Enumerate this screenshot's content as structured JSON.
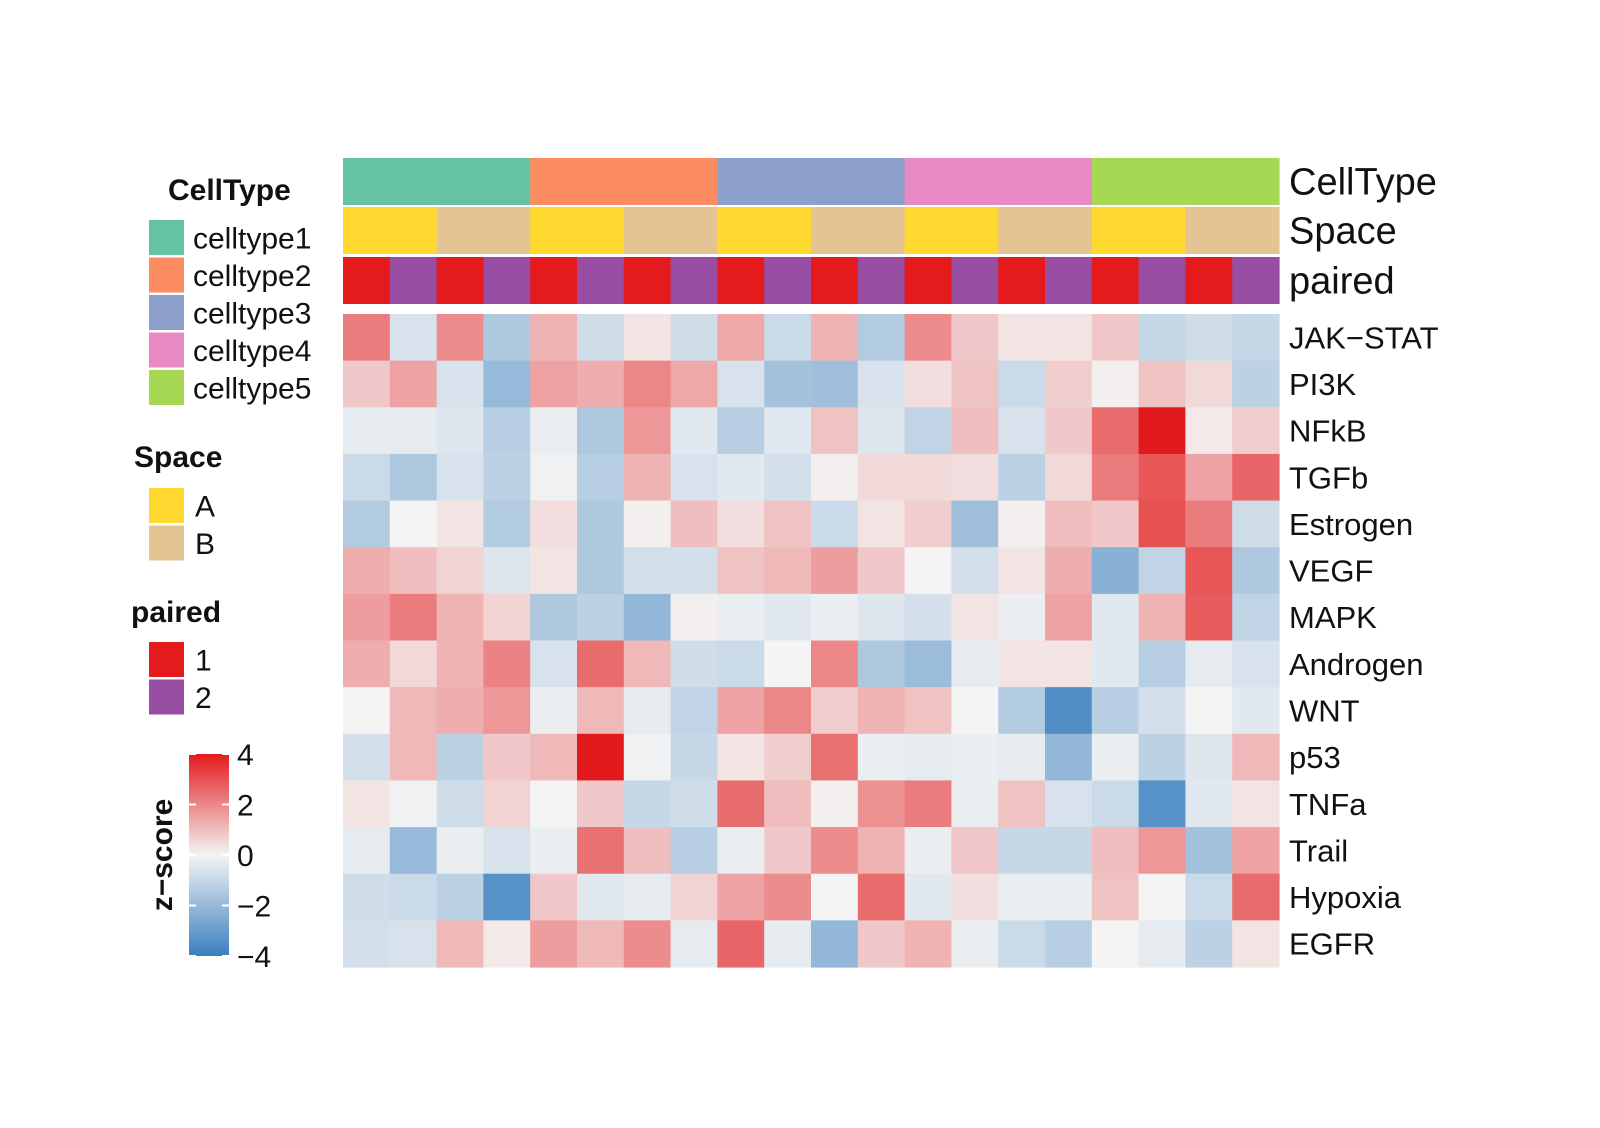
{
  "chart_data": {
    "type": "heatmap",
    "title": "",
    "xlabel": "",
    "ylabel": "",
    "rows": [
      "JAK−STAT",
      "PI3K",
      "NFkB",
      "TGFb",
      "Estrogen",
      "VEGF",
      "MAPK",
      "Androgen",
      "WNT",
      "p53",
      "TNFa",
      "Trail",
      "Hypoxia",
      "EGFR"
    ],
    "values": [
      [
        2.2,
        -0.6,
        1.9,
        -1.5,
        1.2,
        -0.8,
        0.3,
        -0.8,
        1.4,
        -0.9,
        1.2,
        -1.4,
        1.9,
        0.8,
        0.3,
        0.3,
        0.8,
        -1.0,
        -0.8,
        -1.0
      ],
      [
        0.8,
        1.5,
        -0.6,
        -2.0,
        1.5,
        1.3,
        2.0,
        1.4,
        -0.6,
        -1.7,
        -1.8,
        -0.6,
        0.4,
        0.9,
        -0.9,
        0.7,
        0.1,
        0.9,
        0.5,
        -1.2
      ],
      [
        -0.3,
        -0.3,
        -0.5,
        -1.3,
        -0.2,
        -1.5,
        1.7,
        -0.4,
        -1.3,
        -0.4,
        0.9,
        -0.5,
        -1.1,
        1.0,
        -0.6,
        0.8,
        2.5,
        4.0,
        0.2,
        0.7
      ],
      [
        -0.9,
        -1.5,
        -0.6,
        -1.2,
        -0.1,
        -1.3,
        1.2,
        -0.6,
        -0.4,
        -0.7,
        0.1,
        0.5,
        0.5,
        0.4,
        -1.2,
        0.5,
        2.2,
        2.9,
        1.5,
        2.6
      ],
      [
        -1.4,
        0.0,
        0.3,
        -1.4,
        0.4,
        -1.5,
        0.1,
        1.0,
        0.4,
        0.9,
        -0.9,
        0.3,
        0.7,
        -1.8,
        0.1,
        1.0,
        0.8,
        3.0,
        2.2,
        -0.8
      ],
      [
        1.3,
        1.0,
        0.6,
        -0.5,
        0.3,
        -1.5,
        -0.7,
        -0.7,
        0.9,
        1.1,
        1.6,
        0.8,
        0.0,
        -0.7,
        0.3,
        1.3,
        -2.3,
        -1.1,
        2.9,
        -1.5
      ],
      [
        1.6,
        2.2,
        1.2,
        0.6,
        -1.5,
        -1.2,
        -2.1,
        0.1,
        -0.2,
        -0.4,
        -0.2,
        -0.5,
        -0.7,
        0.3,
        -0.2,
        1.5,
        -0.4,
        1.2,
        2.8,
        -1.1
      ],
      [
        1.3,
        0.5,
        1.2,
        2.1,
        -0.6,
        2.5,
        1.1,
        -0.8,
        -0.9,
        0.0,
        2.0,
        -1.5,
        -1.9,
        -0.3,
        0.3,
        0.3,
        -0.4,
        -1.3,
        -0.3,
        -0.6
      ],
      [
        0.0,
        1.1,
        1.3,
        1.7,
        -0.2,
        1.1,
        -0.3,
        -1.1,
        1.5,
        2.0,
        0.7,
        1.2,
        0.9,
        0.0,
        -1.4,
        -3.5,
        -1.3,
        -0.7,
        0.0,
        -0.4
      ],
      [
        -0.7,
        1.1,
        -1.2,
        0.8,
        1.1,
        4.0,
        -0.1,
        -1.0,
        0.3,
        0.7,
        2.4,
        -0.2,
        -0.3,
        -0.2,
        -0.3,
        -2.1,
        -0.2,
        -1.2,
        -0.5,
        1.1
      ],
      [
        0.3,
        -0.1,
        -0.8,
        0.6,
        0.0,
        0.8,
        -1.0,
        -0.8,
        2.5,
        1.0,
        0.1,
        1.8,
        2.2,
        -0.2,
        0.9,
        -0.6,
        -0.9,
        -3.4,
        -0.4,
        0.3
      ],
      [
        -0.3,
        -2.0,
        -0.2,
        -0.6,
        -0.2,
        2.4,
        1.0,
        -1.3,
        -0.2,
        0.8,
        1.9,
        1.2,
        -0.2,
        0.8,
        -1.0,
        -1.0,
        1.0,
        1.7,
        -1.7,
        1.5
      ],
      [
        -0.8,
        -0.9,
        -1.2,
        -3.4,
        0.8,
        -0.4,
        -0.3,
        0.6,
        1.5,
        1.9,
        0.0,
        2.5,
        -0.4,
        0.4,
        -0.2,
        -0.2,
        0.9,
        0.0,
        -0.9,
        2.5
      ],
      [
        -0.7,
        -0.6,
        1.1,
        0.2,
        1.6,
        1.1,
        1.9,
        -0.3,
        2.6,
        -0.3,
        -2.1,
        0.8,
        1.2,
        -0.2,
        -0.9,
        -1.3,
        0.0,
        -0.3,
        -1.2,
        0.3
      ]
    ],
    "annotations": {
      "CellType": [
        "celltype1",
        "celltype1",
        "celltype1",
        "celltype1",
        "celltype2",
        "celltype2",
        "celltype2",
        "celltype2",
        "celltype3",
        "celltype3",
        "celltype3",
        "celltype3",
        "celltype4",
        "celltype4",
        "celltype4",
        "celltype4",
        "celltype5",
        "celltype5",
        "celltype5",
        "celltype5"
      ],
      "Space": [
        "A",
        "A",
        "B",
        "B",
        "A",
        "A",
        "B",
        "B",
        "A",
        "A",
        "B",
        "B",
        "A",
        "A",
        "B",
        "B",
        "A",
        "A",
        "B",
        "B"
      ],
      "paired": [
        "1",
        "2",
        "1",
        "2",
        "1",
        "2",
        "1",
        "2",
        "1",
        "2",
        "1",
        "2",
        "1",
        "2",
        "1",
        "2",
        "1",
        "2",
        "1",
        "2"
      ]
    },
    "annotation_labels": [
      "CellType",
      "Space",
      "paired"
    ],
    "colorbar": {
      "title": "z−score",
      "range": [
        -4,
        4
      ],
      "ticks": [
        4,
        2,
        0,
        -2,
        -4
      ],
      "tick_labels": [
        "4",
        "2",
        "0",
        "−2",
        "−4"
      ],
      "colors": {
        "low": "#3A7FBF",
        "mid": "#F4F4F4",
        "high": "#E31A1C"
      }
    },
    "legends": [
      {
        "title": "CellType",
        "items": [
          {
            "label": "celltype1",
            "color": "#66C2A5"
          },
          {
            "label": "celltype2",
            "color": "#FC8D62"
          },
          {
            "label": "celltype3",
            "color": "#8DA0CB"
          },
          {
            "label": "celltype4",
            "color": "#E78AC3"
          },
          {
            "label": "celltype5",
            "color": "#A6D854"
          }
        ]
      },
      {
        "title": "Space",
        "items": [
          {
            "label": "A",
            "color": "#FFD92F"
          },
          {
            "label": "B",
            "color": "#E5C494"
          }
        ]
      },
      {
        "title": "paired",
        "items": [
          {
            "label": "1",
            "color": "#E41A1C"
          },
          {
            "label": "2",
            "color": "#984EA3"
          }
        ]
      }
    ]
  }
}
